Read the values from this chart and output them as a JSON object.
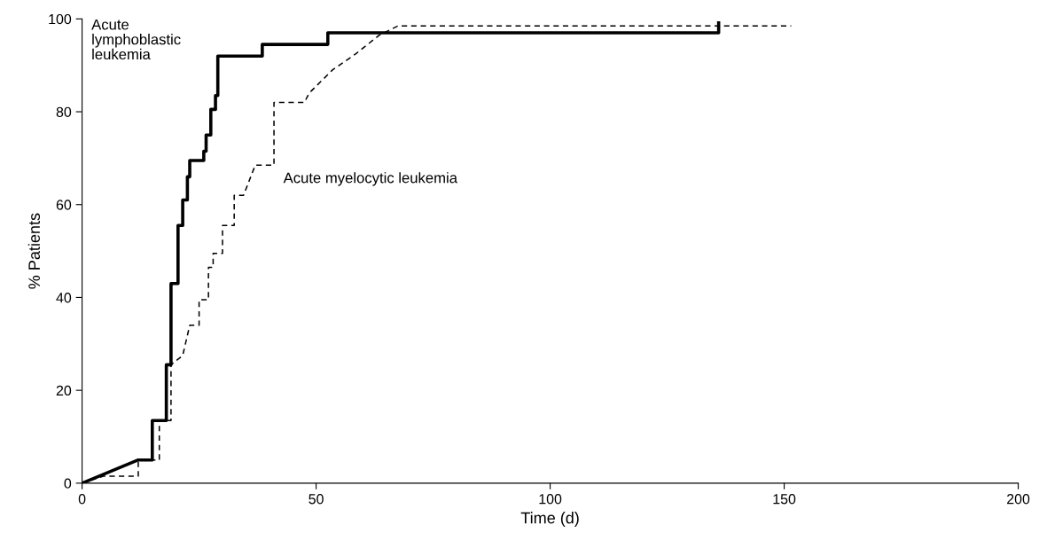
{
  "chart_data": {
    "type": "line",
    "xlabel": "Time (d)",
    "ylabel": "% Patients",
    "xlim": [
      0,
      200
    ],
    "xticks": [
      0,
      50,
      100,
      150,
      200
    ],
    "ylim": [
      0,
      100
    ],
    "yticks": [
      0,
      20,
      40,
      60,
      80,
      100
    ],
    "grid": false,
    "legend": false,
    "marker": "none",
    "series": [
      {
        "name": "Acute\nlymphoblastic\nleukemia",
        "color": "#000000",
        "line_style": "solid",
        "x": [
          0,
          12,
          15,
          15,
          18,
          18,
          19,
          19,
          20.5,
          20.5,
          21.5,
          21.5,
          22.5,
          22.5,
          23,
          23,
          26,
          26,
          26.5,
          26.5,
          27.5,
          27.5,
          28.5,
          28.5,
          29,
          29,
          38.5,
          38.5,
          52.5,
          52.5,
          136,
          136
        ],
        "values": [
          0,
          5,
          5,
          13.5,
          13.5,
          25.5,
          25.5,
          43,
          43,
          55.5,
          55.5,
          61,
          61,
          66,
          66,
          69.5,
          69.5,
          71.5,
          71.5,
          75,
          75,
          80.5,
          80.5,
          83.5,
          83.5,
          92,
          92,
          94.5,
          94.5,
          97,
          97,
          99.5
        ]
      },
      {
        "name": "Acute myelocytic leukemia",
        "color": "#000000",
        "line_style": "dashed",
        "x": [
          0,
          4.5,
          12,
          12,
          16.5,
          16.5,
          19,
          19,
          21.5,
          23,
          25,
          25,
          27,
          27,
          28,
          28,
          30,
          30,
          32.5,
          32.5,
          34.5,
          37,
          41,
          41,
          47.5,
          48.5,
          53.5,
          58.5,
          63.5,
          67.5,
          151.5
        ],
        "values": [
          0,
          1.5,
          1.5,
          5,
          5,
          13.5,
          13.5,
          25.5,
          27.5,
          34,
          34,
          39.5,
          39.5,
          46.5,
          46.5,
          49.5,
          49.5,
          55.5,
          55.5,
          62,
          62,
          68.5,
          68.5,
          82,
          82,
          84,
          89,
          92.5,
          96.5,
          98.5,
          98.5
        ]
      }
    ]
  }
}
